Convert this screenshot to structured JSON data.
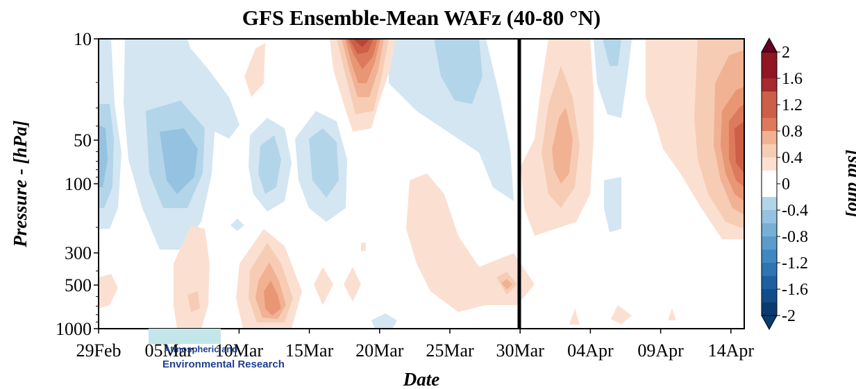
{
  "chart_data": {
    "type": "heatmap",
    "subtype": "filled-contour",
    "title": "GFS Ensemble-Mean WAFz (40-80 °N)",
    "xlabel": "Date",
    "ylabel": "Pressure - [hPa]",
    "colorbar_label": "[std ano]",
    "y_scale": "log",
    "y_inverted": true,
    "ylim": [
      1000,
      10
    ],
    "x_ticks": [
      "29Feb",
      "05Mar",
      "10Mar",
      "15Mar",
      "20Mar",
      "25Mar",
      "30Mar",
      "04Apr",
      "09Apr",
      "14Apr"
    ],
    "y_ticks": [
      10,
      50,
      100,
      300,
      500,
      1000
    ],
    "vertical_line_at": "30Mar",
    "colorbar": {
      "min": -2,
      "max": 2,
      "step": 0.2,
      "extend": "both",
      "tick_labels": [
        "2",
        "1.6",
        "1.2",
        "0.8",
        "0.4",
        "0",
        "-0.4",
        "-0.8",
        "-1.2",
        "-1.6",
        "-2"
      ],
      "colors": {
        "-2": "#0b3b6e",
        "-1.8": "#134c8a",
        "-1.6": "#1f5fa0",
        "-1.4": "#2f74b3",
        "-1.2": "#4088c1",
        "-1.0": "#5a9bcc",
        "-0.8": "#77afd6",
        "-0.6": "#95c2e0",
        "-0.4": "#b3d5e9",
        "-0.2": "#d3e6f2",
        "0": "#ffffff",
        "0.2": "#fbe0d2",
        "0.4": "#f7ccb4",
        "0.6": "#f1b294",
        "0.8": "#e99675",
        "1.0": "#dd7a5c",
        "1.2": "#cd5f48",
        "1.4": "#bb4337",
        "1.6": "#a72a2c",
        "1.8": "#8f1622",
        "2": "#67001f"
      }
    },
    "anomalies": [
      {
        "date": "29Feb",
        "pressure_hPa": 70,
        "value": -0.6
      },
      {
        "date": "29Feb",
        "pressure_hPa": 600,
        "value": 0.2
      },
      {
        "date": "05Mar",
        "pressure_hPa": 15,
        "value": -0.2
      },
      {
        "date": "05Mar",
        "pressure_hPa": 70,
        "value": -0.6
      },
      {
        "date": "09Mar",
        "pressure_hPa": 600,
        "value": 0.2
      },
      {
        "date": "12Mar",
        "pressure_hPa": 700,
        "value": 0.8
      },
      {
        "date": "12Mar",
        "pressure_hPa": 80,
        "value": -0.4
      },
      {
        "date": "16Mar",
        "pressure_hPa": 80,
        "value": -0.6
      },
      {
        "date": "18Mar",
        "pressure_hPa": 12,
        "value": 1.4
      },
      {
        "date": "26Mar",
        "pressure_hPa": 25,
        "value": -0.4
      },
      {
        "date": "29Mar",
        "pressure_hPa": 550,
        "value": 0.6
      },
      {
        "date": "01Apr",
        "pressure_hPa": 60,
        "value": 0.6
      },
      {
        "date": "05Apr",
        "pressure_hPa": 20,
        "value": -0.4
      },
      {
        "date": "15Apr",
        "pressure_hPa": 60,
        "value": 1.0
      }
    ]
  },
  "watermark": {
    "line1": "Atmospheric and",
    "line2": "Environmental Research"
  }
}
